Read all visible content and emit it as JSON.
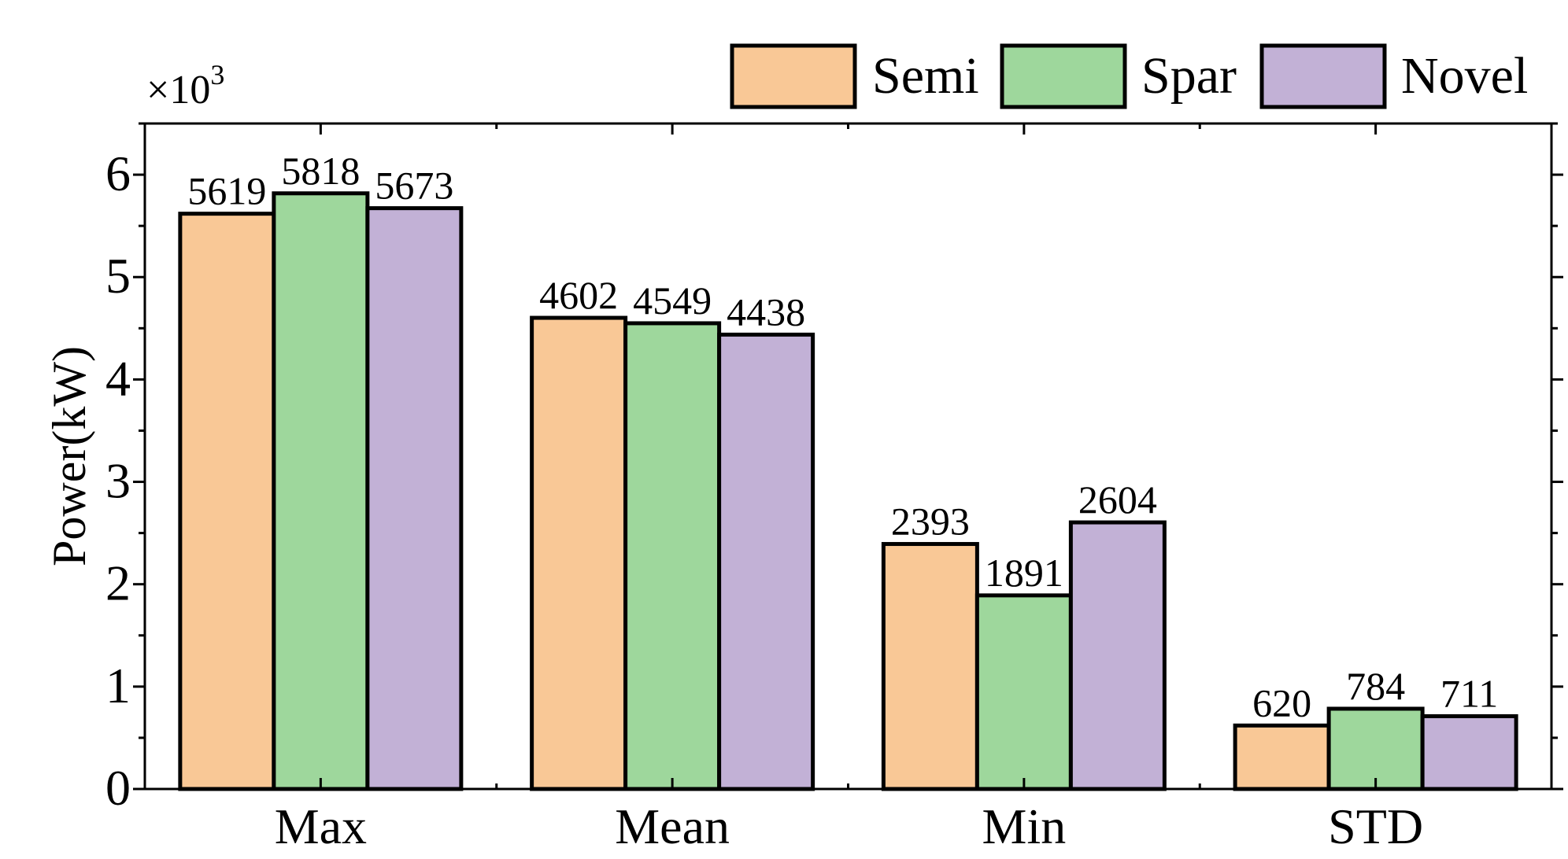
{
  "chart_data": {
    "type": "bar",
    "categories": [
      "Max",
      "Mean",
      "Min",
      "STD"
    ],
    "series": [
      {
        "name": "Semi",
        "values": [
          5619,
          4602,
          2393,
          620
        ],
        "color": "#F9C896"
      },
      {
        "name": "Spar",
        "values": [
          5818,
          4549,
          1891,
          784
        ],
        "color": "#9ED79C"
      },
      {
        "name": "Novel",
        "values": [
          5673,
          4438,
          2604,
          711
        ],
        "color": "#C2B1D6"
      }
    ],
    "ylabel": "Power(kW)",
    "y_multiplier_label": "×10",
    "y_multiplier_exponent": "3",
    "y_scale": 1000,
    "ylim": [
      0,
      6.5
    ],
    "yticks": [
      "0",
      "1",
      "2",
      "3",
      "4",
      "5",
      "6"
    ],
    "legend_position": "top-right",
    "grid": false
  }
}
